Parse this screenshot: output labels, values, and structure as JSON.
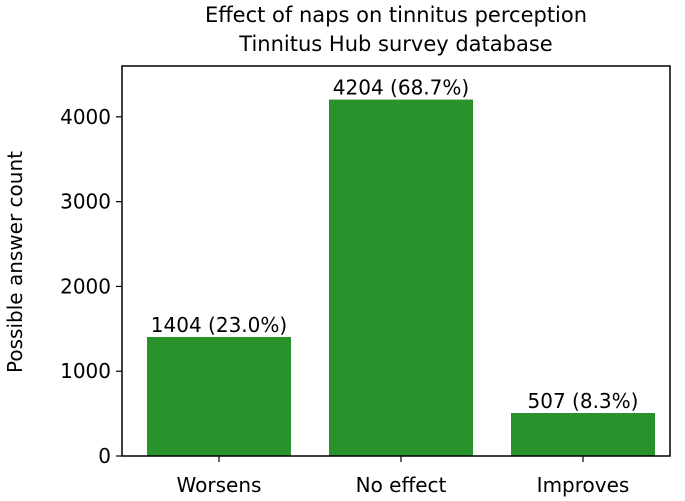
{
  "chart_data": {
    "type": "bar",
    "title": "Effect of naps on tinnitus perception",
    "subtitle": "Tinnitus Hub survey database",
    "xlabel": "",
    "ylabel": "Possible answer count",
    "categories": [
      "Worsens",
      "No effect",
      "Improves"
    ],
    "values": [
      1404,
      4204,
      507
    ],
    "data_labels": [
      "1404 (23.0%)",
      "4204 (68.7%)",
      "507 (8.3%)"
    ],
    "ylim": [
      0,
      4600
    ],
    "yticks": [
      0,
      1000,
      2000,
      3000,
      4000
    ],
    "bar_color": "#2a922a",
    "grid": false
  }
}
